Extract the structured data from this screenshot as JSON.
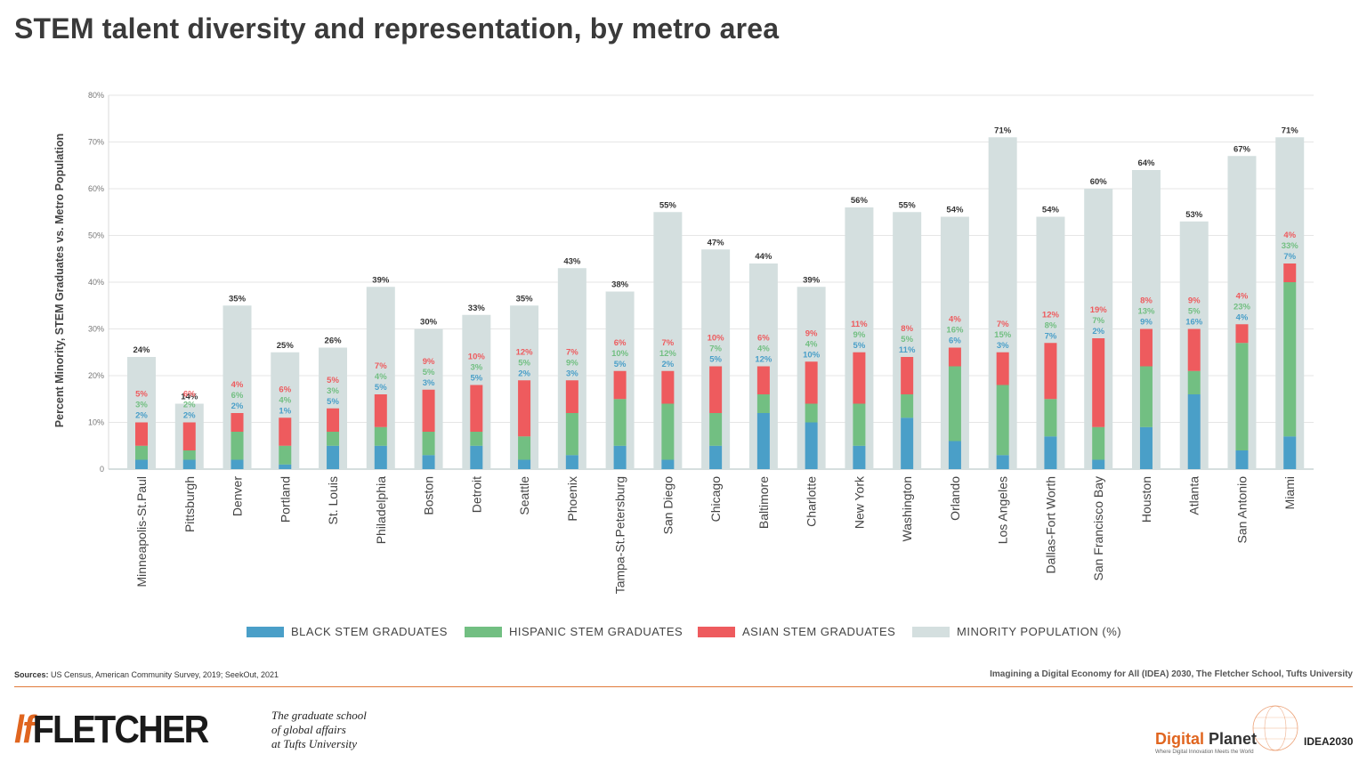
{
  "title": "STEM talent diversity and representation, by metro area",
  "chart_data": {
    "type": "bar",
    "subtype": "overlaid stacked bar",
    "ylabel": "Percent Minority, STEM Graduates vs. Metro Population",
    "xlabel": "",
    "ylim": [
      0,
      80
    ],
    "yticks": [
      "0",
      "10%",
      "20%",
      "30%",
      "40%",
      "50%",
      "60%",
      "70%",
      "80%"
    ],
    "grid": true,
    "legend_position": "bottom",
    "categories": [
      "Minneapolis-St.Paul",
      "Pittsburgh",
      "Denver",
      "Portland",
      "St. Louis",
      "Philadelphia",
      "Boston",
      "Detroit",
      "Seattle",
      "Phoenix",
      "Tampa-St.Petersburg",
      "San Diego",
      "Chicago",
      "Baltimore",
      "Charlotte",
      "New York",
      "Washington",
      "Orlando",
      "Los Angeles",
      "Dallas-Fort Worth",
      "San Francisco Bay",
      "Houston",
      "Atlanta",
      "San Antonio",
      "Miami"
    ],
    "series": [
      {
        "name": "BLACK STEM GRADUATES",
        "color": "#4a9fc8",
        "values": [
          2,
          2,
          2,
          1,
          5,
          5,
          3,
          5,
          2,
          3,
          5,
          2,
          5,
          12,
          10,
          5,
          11,
          6,
          3,
          7,
          2,
          9,
          16,
          4,
          7
        ]
      },
      {
        "name": "HISPANIC STEM GRADUATES",
        "color": "#72bf82",
        "values": [
          3,
          2,
          6,
          4,
          3,
          4,
          5,
          3,
          5,
          9,
          10,
          12,
          7,
          4,
          4,
          9,
          5,
          16,
          15,
          8,
          7,
          13,
          5,
          23,
          33
        ]
      },
      {
        "name": "ASIAN STEM GRADUATES",
        "color": "#ee5b5e",
        "values": [
          5,
          6,
          4,
          6,
          5,
          7,
          9,
          10,
          12,
          7,
          6,
          7,
          10,
          6,
          9,
          11,
          8,
          4,
          7,
          12,
          19,
          8,
          9,
          4,
          4
        ]
      },
      {
        "name": "MINORITY POPULATION (%)",
        "color": "#d4dfdf",
        "values": [
          24,
          14,
          35,
          25,
          26,
          39,
          30,
          33,
          35,
          43,
          38,
          55,
          47,
          44,
          39,
          56,
          55,
          54,
          71,
          54,
          60,
          64,
          53,
          67,
          71
        ]
      }
    ]
  },
  "legend": {
    "black": "BLACK STEM GRADUATES",
    "hispanic": "HISPANIC STEM GRADUATES",
    "asian": "ASIAN STEM GRADUATES",
    "minority": "MINORITY POPULATION (%)"
  },
  "colors": {
    "black": "#4a9fc8",
    "hispanic": "#72bf82",
    "asian": "#ee5b5e",
    "minority": "#d4dfdf",
    "accent": "#e0651f"
  },
  "footer": {
    "sources_label": "Sources:",
    "sources_text": " US Census, American Community Survey, 2019; SeekOut, 2021",
    "attribution": "Imagining a Digital Economy for All (IDEA) 2030, The Fletcher School, Tufts University",
    "logo_mark": "lf",
    "logo_text": "FLETCHER",
    "tagline": "The graduate school\nof global affairs\nat Tufts University",
    "dp_brand_1": "Digital ",
    "dp_brand_2": "Planet",
    "dp_tagline": "Where Digital Innovation Meets the World",
    "idea": "IDEA2030"
  }
}
